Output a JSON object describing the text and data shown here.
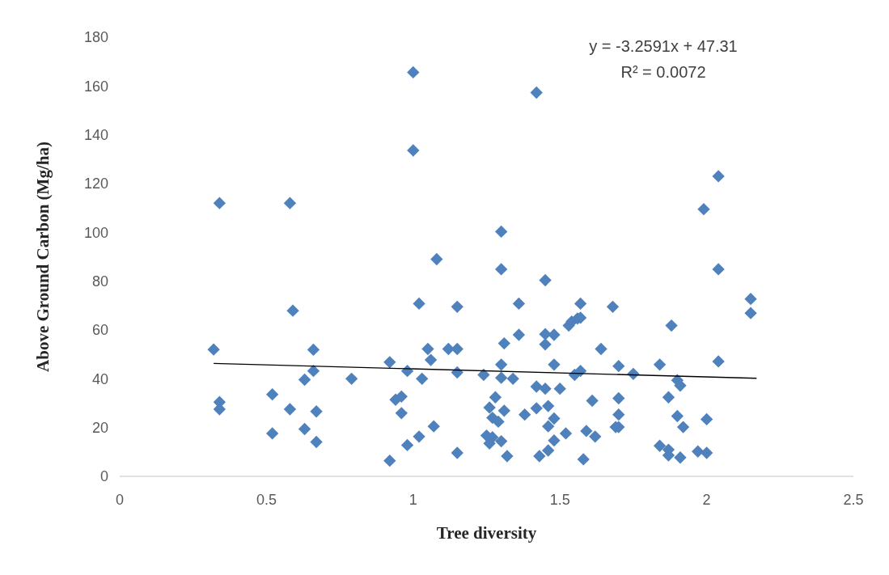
{
  "chart_data": {
    "type": "scatter",
    "xlabel": "Tree diversity",
    "ylabel": "Above Ground Carbon (Mg/ha)",
    "xlim": [
      0,
      2.5
    ],
    "xticks": [
      0,
      0.5,
      1,
      1.5,
      2,
      2.5
    ],
    "ylim": [
      0,
      180
    ],
    "yticks": [
      0,
      20,
      40,
      60,
      80,
      100,
      120,
      140,
      160,
      180
    ],
    "grid": false,
    "marker": "diamond",
    "annotations": [
      "y = -3.2591x + 47.31",
      "R² = 0.0072"
    ],
    "series": [
      {
        "type": "scatter",
        "color": "#4f81bd",
        "x": [
          0.32,
          0.34,
          0.34,
          0.34,
          0.52,
          0.52,
          0.58,
          0.59,
          0.58,
          0.63,
          0.63,
          0.66,
          0.66,
          0.67,
          0.67,
          0.79,
          0.92,
          0.92,
          0.94,
          0.96,
          0.96,
          0.98,
          0.98,
          1.0,
          1.0,
          1.02,
          1.02,
          1.03,
          1.05,
          1.06,
          1.07,
          1.08,
          1.12,
          1.15,
          1.15,
          1.15,
          1.15,
          1.24,
          1.25,
          1.26,
          1.26,
          1.27,
          1.28,
          1.29,
          1.27,
          1.3,
          1.3,
          1.3,
          1.3,
          1.3,
          1.31,
          1.31,
          1.32,
          1.34,
          1.36,
          1.36,
          1.38,
          1.42,
          1.42,
          1.42,
          1.43,
          1.45,
          1.45,
          1.45,
          1.45,
          1.46,
          1.46,
          1.46,
          1.48,
          1.48,
          1.48,
          1.48,
          1.5,
          1.52,
          1.53,
          1.54,
          1.55,
          1.56,
          1.57,
          1.57,
          1.57,
          1.58,
          1.59,
          1.61,
          1.62,
          1.64,
          1.68,
          1.7,
          1.69,
          1.7,
          1.7,
          1.7,
          1.75,
          1.84,
          1.84,
          1.88,
          1.87,
          1.87,
          1.87,
          1.9,
          1.91,
          1.9,
          1.91,
          1.92,
          1.97,
          1.99,
          2.0,
          2.0,
          2.04,
          2.04,
          2.04,
          2.15,
          2.15
        ],
        "values": [
          52,
          112,
          30.4,
          27.5,
          33.6,
          17.6,
          112,
          67.9,
          27.5,
          19.4,
          39.6,
          43.2,
          51.9,
          26.6,
          14.1,
          40,
          6.4,
          46.8,
          31.4,
          32.7,
          25.9,
          43.2,
          12.8,
          165.6,
          133.6,
          16.3,
          70.8,
          40,
          52.2,
          47.7,
          20.5,
          89,
          52.2,
          9.6,
          52.2,
          69.5,
          42.6,
          41.6,
          16.7,
          28.2,
          13.5,
          24,
          32.4,
          22.4,
          16,
          100.3,
          84.9,
          45.8,
          40.4,
          14.4,
          54.5,
          26.9,
          8.3,
          40,
          58,
          70.8,
          25.3,
          157.3,
          36.8,
          27.9,
          8.3,
          80.4,
          58.3,
          54.1,
          35.9,
          28.8,
          10.6,
          20.5,
          23.7,
          45.8,
          58,
          14.7,
          35.9,
          17.6,
          61.8,
          63.4,
          41.6,
          64.7,
          70.8,
          65,
          43.2,
          7,
          18.6,
          31,
          16.3,
          52.2,
          69.5,
          25.3,
          20.2,
          45.2,
          32,
          20.2,
          42,
          12.5,
          45.8,
          61.8,
          32.4,
          10.9,
          8.6,
          39.4,
          37.2,
          24.7,
          7.7,
          20.2,
          10.2,
          109.5,
          9.6,
          23.4,
          123,
          84.9,
          47.1,
          72.7,
          66.9
        ]
      },
      {
        "type": "line",
        "color": "#000000",
        "marker": "none",
        "x": [
          0.32,
          2.17
        ],
        "values": [
          46.3,
          40.2
        ]
      }
    ]
  }
}
